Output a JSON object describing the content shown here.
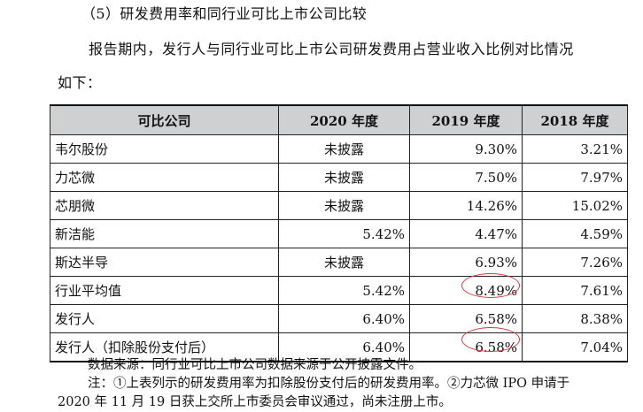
{
  "heading": "（5）研发费用率和同行业可比上市公司比较",
  "intro_line1": "报告期内，发行人与同行业可比上市公司研发费用占营业收入比例对比情况",
  "intro_line2": "如下：",
  "table": {
    "headers": [
      "可比公司",
      "2020 年度",
      "2019 年度",
      "2018 年度"
    ],
    "rows": [
      {
        "company": "韦尔股份",
        "y2020": "未披露",
        "y2019": "9.30%",
        "y2018": "3.21%"
      },
      {
        "company": "力芯微",
        "y2020": "未披露",
        "y2019": "7.50%",
        "y2018": "7.97%"
      },
      {
        "company": "芯朋微",
        "y2020": "未披露",
        "y2019": "14.26%",
        "y2018": "15.02%"
      },
      {
        "company": "新洁能",
        "y2020": "5.42%",
        "y2019": "4.47%",
        "y2018": "4.59%"
      },
      {
        "company": "斯达半导",
        "y2020": "未披露",
        "y2019": "6.93%",
        "y2018": "7.26%"
      },
      {
        "company": "行业平均值",
        "y2020": "5.42%",
        "y2019": "8.49%",
        "y2018": "7.61%"
      },
      {
        "company": "发行人",
        "y2020": "6.40%",
        "y2019": "6.58%",
        "y2018": "8.38%"
      },
      {
        "company": "发行人（扣除股份支付后）",
        "y2020": "6.40%",
        "y2019": "6.58%",
        "y2018": "7.04%"
      }
    ],
    "annotation_color": "#d8383a"
  },
  "notes": {
    "source": "数据来源：同行业可比上市公司数据来源于公开披露文件。",
    "note_line1": "注：①上表列示的研发费用率为扣除股份支付后的研发费用率。②力芯微 IPO 申请于",
    "note_line2": "2020 年 11 月 19 日获上交所上市委员会审议通过，尚未注册上市。"
  }
}
